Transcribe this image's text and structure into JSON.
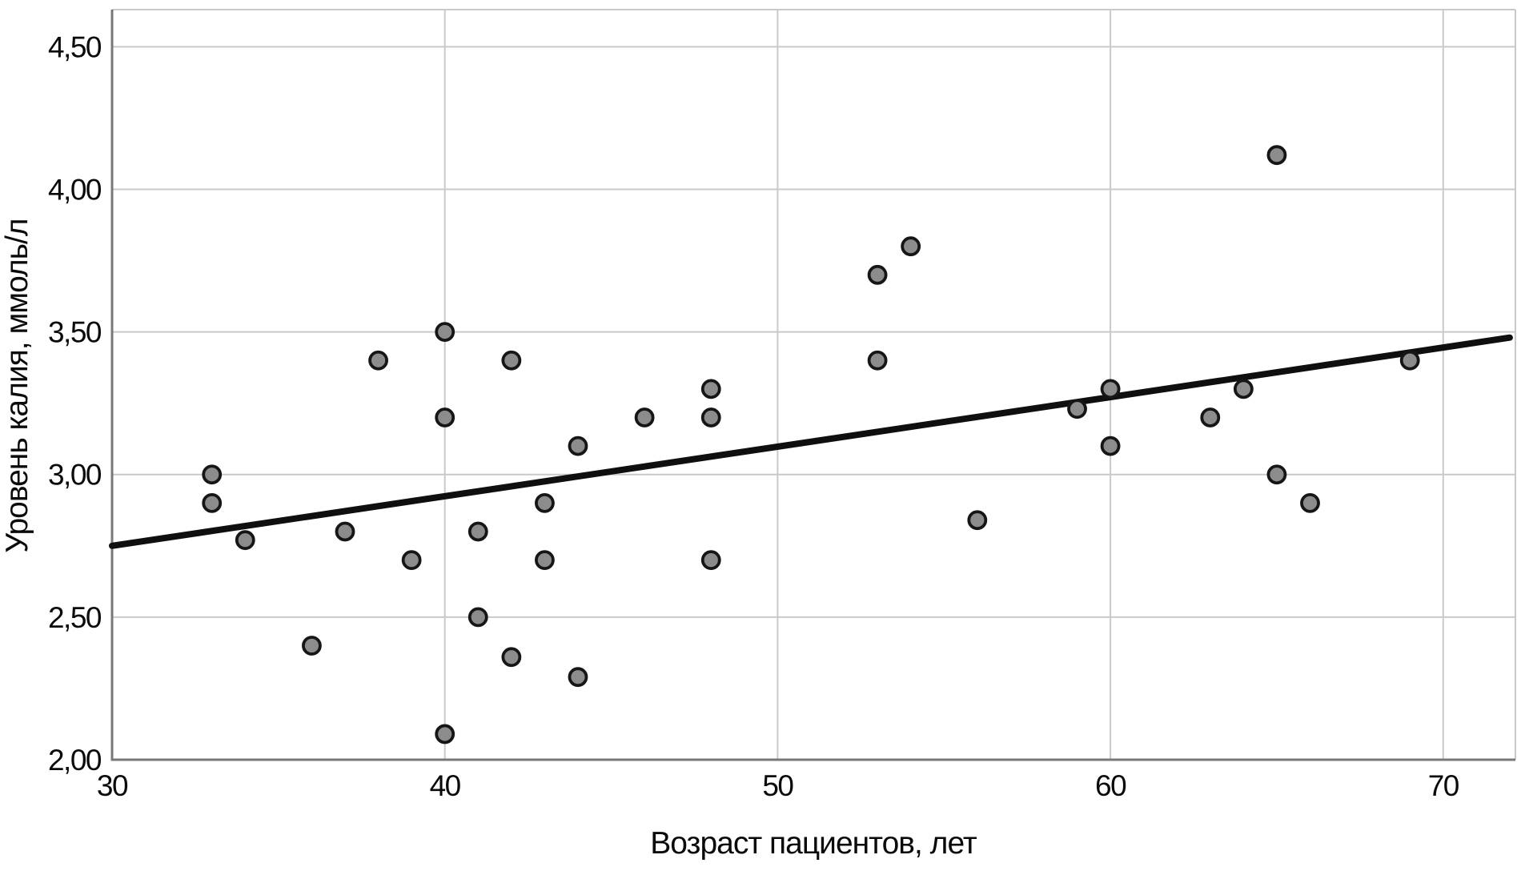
{
  "chart_data": {
    "type": "scatter",
    "title": "",
    "xlabel": "Возраст пациентов, лет",
    "ylabel": "Уровень калия, ммоль/л",
    "xlim": [
      30,
      72.17
    ],
    "ylim": [
      2.0,
      4.63
    ],
    "grid": true,
    "legend": "none",
    "x_ticks": [
      {
        "value": 30,
        "label": "30"
      },
      {
        "value": 40,
        "label": "40"
      },
      {
        "value": 50,
        "label": "50"
      },
      {
        "value": 60,
        "label": "60"
      },
      {
        "value": 70,
        "label": "70"
      }
    ],
    "y_ticks": [
      {
        "value": 2.0,
        "label": "2,00"
      },
      {
        "value": 2.5,
        "label": "2,50"
      },
      {
        "value": 3.0,
        "label": "3,00"
      },
      {
        "value": 3.5,
        "label": "3,50"
      },
      {
        "value": 4.0,
        "label": "4,00"
      },
      {
        "value": 4.5,
        "label": "4,50"
      }
    ],
    "points": [
      [
        33,
        3.0
      ],
      [
        33,
        2.9
      ],
      [
        34,
        2.77
      ],
      [
        36,
        2.4
      ],
      [
        37,
        2.8
      ],
      [
        38,
        3.4
      ],
      [
        39,
        2.7
      ],
      [
        40,
        3.5
      ],
      [
        40,
        3.2
      ],
      [
        40,
        2.09
      ],
      [
        41,
        2.8
      ],
      [
        41,
        2.5
      ],
      [
        42,
        3.4
      ],
      [
        42,
        2.36
      ],
      [
        43,
        2.9
      ],
      [
        43,
        2.7
      ],
      [
        44,
        3.1
      ],
      [
        44,
        2.29
      ],
      [
        46,
        3.2
      ],
      [
        48,
        3.3
      ],
      [
        48,
        3.2
      ],
      [
        48,
        2.7
      ],
      [
        53,
        3.7
      ],
      [
        53,
        3.4
      ],
      [
        54,
        3.8
      ],
      [
        56,
        2.84
      ],
      [
        59,
        3.23
      ],
      [
        60,
        3.3
      ],
      [
        60,
        3.1
      ],
      [
        63,
        3.2
      ],
      [
        64,
        3.3
      ],
      [
        65,
        4.12
      ],
      [
        65,
        3.0
      ],
      [
        66,
        2.9
      ],
      [
        69,
        3.4
      ]
    ],
    "trend_line": {
      "x1": 30,
      "y1": 2.75,
      "x2": 72,
      "y2": 3.48
    },
    "colors": {
      "marker_fill": "#8c8c8c",
      "marker_edge": "#161616",
      "trend_line": "#0f0f0f",
      "grid_line": "#c9c9c9",
      "axis_line": "#787878",
      "text": "#0a0a0a",
      "background": "#ffffff"
    }
  }
}
